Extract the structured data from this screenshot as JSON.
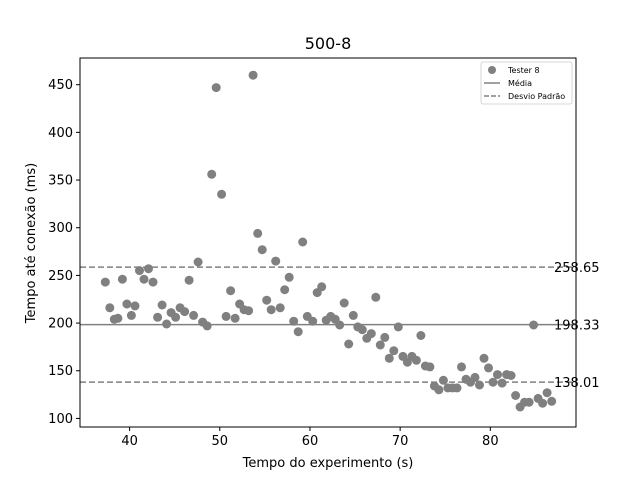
{
  "chart_data": {
    "type": "scatter",
    "title": "500-8",
    "xlabel": "Tempo do experimento (s)",
    "ylabel": "Tempo até conexão (ms)",
    "xlim": [
      34.5,
      89.5
    ],
    "ylim": [
      91,
      478
    ],
    "xticks": [
      40,
      50,
      60,
      70,
      80
    ],
    "yticks": [
      100,
      150,
      200,
      250,
      300,
      350,
      400,
      450
    ],
    "grid": false,
    "legend_position": "top-right",
    "series": [
      {
        "name": "Tester 8",
        "color": "#808080",
        "points": [
          [
            37.3,
            243
          ],
          [
            37.8,
            216
          ],
          [
            38.3,
            204
          ],
          [
            38.7,
            205
          ],
          [
            39.2,
            246
          ],
          [
            39.7,
            220
          ],
          [
            40.2,
            208
          ],
          [
            40.6,
            218
          ],
          [
            41.1,
            255
          ],
          [
            41.6,
            246
          ],
          [
            42.1,
            257
          ],
          [
            42.6,
            243
          ],
          [
            43.1,
            206
          ],
          [
            43.6,
            219
          ],
          [
            44.1,
            199
          ],
          [
            44.6,
            211
          ],
          [
            45.1,
            206
          ],
          [
            45.6,
            216
          ],
          [
            46.1,
            212
          ],
          [
            46.6,
            245
          ],
          [
            47.1,
            208
          ],
          [
            47.6,
            264
          ],
          [
            48.1,
            201
          ],
          [
            48.6,
            197
          ],
          [
            49.1,
            356
          ],
          [
            49.6,
            447
          ],
          [
            50.2,
            335
          ],
          [
            50.7,
            207
          ],
          [
            51.2,
            234
          ],
          [
            51.7,
            205
          ],
          [
            52.2,
            220
          ],
          [
            52.7,
            214
          ],
          [
            53.2,
            213
          ],
          [
            53.7,
            460
          ],
          [
            54.2,
            294
          ],
          [
            54.7,
            277
          ],
          [
            55.2,
            224
          ],
          [
            55.7,
            214
          ],
          [
            56.2,
            265
          ],
          [
            56.7,
            216
          ],
          [
            57.2,
            235
          ],
          [
            57.7,
            248
          ],
          [
            58.2,
            202
          ],
          [
            58.7,
            191
          ],
          [
            59.2,
            285
          ],
          [
            59.7,
            207
          ],
          [
            60.3,
            202
          ],
          [
            60.8,
            232
          ],
          [
            61.3,
            238
          ],
          [
            61.8,
            203
          ],
          [
            62.3,
            207
          ],
          [
            62.8,
            204
          ],
          [
            63.3,
            198
          ],
          [
            63.8,
            221
          ],
          [
            64.3,
            178
          ],
          [
            64.8,
            208
          ],
          [
            65.3,
            196
          ],
          [
            65.8,
            193
          ],
          [
            66.3,
            184
          ],
          [
            66.8,
            189
          ],
          [
            67.3,
            227
          ],
          [
            67.8,
            177
          ],
          [
            68.3,
            185
          ],
          [
            68.8,
            163
          ],
          [
            69.3,
            171
          ],
          [
            69.8,
            196
          ],
          [
            70.3,
            165
          ],
          [
            70.8,
            159
          ],
          [
            71.3,
            165
          ],
          [
            71.8,
            161
          ],
          [
            72.3,
            187
          ],
          [
            72.8,
            155
          ],
          [
            73.3,
            154
          ],
          [
            73.8,
            134
          ],
          [
            74.3,
            130
          ],
          [
            74.8,
            140
          ],
          [
            75.3,
            132
          ],
          [
            75.8,
            132
          ],
          [
            76.3,
            132
          ],
          [
            76.8,
            154
          ],
          [
            77.3,
            141
          ],
          [
            77.8,
            138
          ],
          [
            78.3,
            143
          ],
          [
            78.8,
            135
          ],
          [
            79.3,
            163
          ],
          [
            79.8,
            153
          ],
          [
            80.3,
            138
          ],
          [
            80.8,
            146
          ],
          [
            81.3,
            137
          ],
          [
            81.8,
            146
          ],
          [
            82.3,
            145
          ],
          [
            82.8,
            124
          ],
          [
            83.3,
            112
          ],
          [
            83.8,
            117
          ],
          [
            84.3,
            117
          ],
          [
            84.8,
            198
          ],
          [
            85.3,
            121
          ],
          [
            85.8,
            116
          ],
          [
            86.3,
            127
          ],
          [
            86.8,
            118
          ]
        ]
      }
    ],
    "reference_lines": [
      {
        "name": "Média",
        "value": 198.33,
        "label": "198.33",
        "style": "solid",
        "color": "#808080"
      },
      {
        "name": "Desvio Padrão",
        "value": 258.65,
        "label": "258.65",
        "style": "dashed",
        "color": "#808080"
      },
      {
        "name": "Desvio Padrão",
        "value": 138.01,
        "label": "138.01",
        "style": "dashed",
        "color": "#808080"
      }
    ],
    "legend": {
      "entries": [
        {
          "label": "Tester 8",
          "kind": "marker"
        },
        {
          "label": "Média",
          "kind": "solid"
        },
        {
          "label": "Desvio Padrão",
          "kind": "dashed"
        }
      ]
    }
  }
}
